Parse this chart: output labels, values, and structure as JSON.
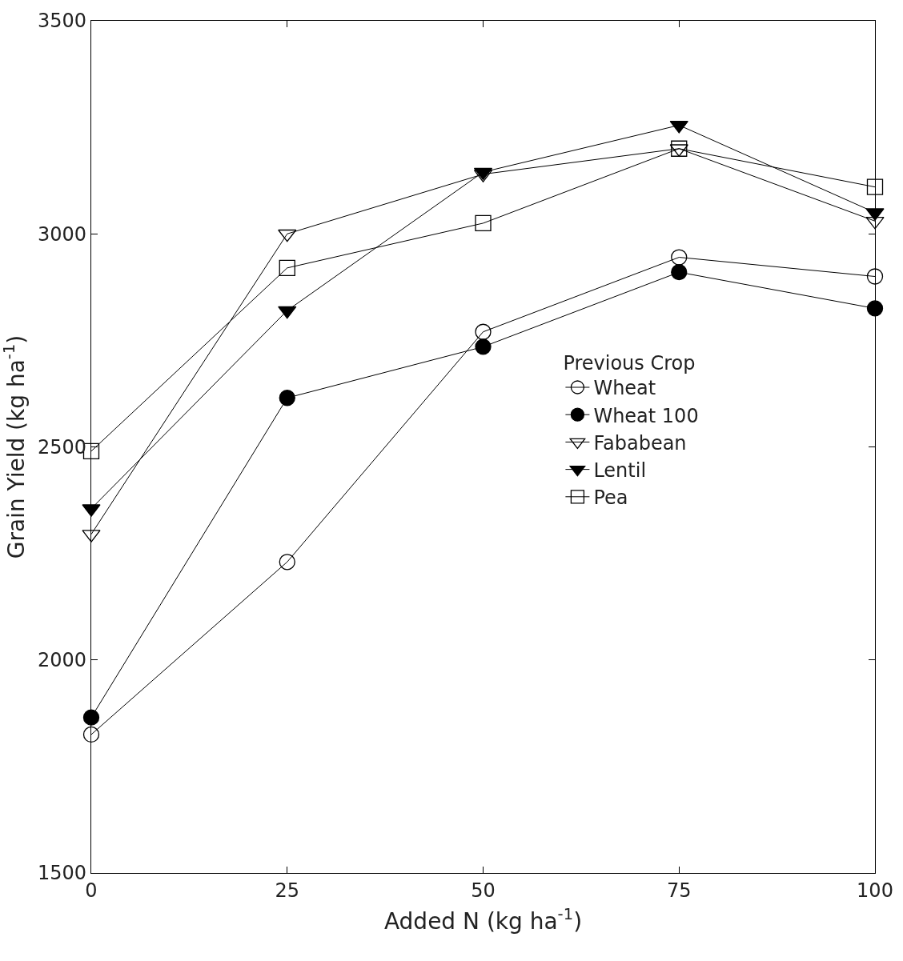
{
  "chart_data": {
    "type": "line",
    "xlabel": "Added N (kg ha$^{-1}$)",
    "ylabel": "Grain Yield (kg ha$^{-1}$)",
    "legend_title": "Previous Crop",
    "x": [
      0,
      25,
      50,
      75,
      100
    ],
    "series": [
      {
        "name": "Wheat",
        "color": "#000000",
        "marker": "circle-open",
        "values": [
          1825,
          2230,
          2770,
          2945,
          2900
        ]
      },
      {
        "name": "Wheat 100",
        "color": "#000000",
        "marker": "circle",
        "values": [
          1865,
          2615,
          2735,
          2910,
          2825
        ]
      },
      {
        "name": "Fababean",
        "color": "#000000",
        "marker": "triangle-down-open",
        "values": [
          2295,
          3000,
          3140,
          3200,
          3030
        ]
      },
      {
        "name": "Lentil",
        "color": "#000000",
        "marker": "triangle-down",
        "values": [
          2355,
          2820,
          3145,
          3255,
          3050
        ]
      },
      {
        "name": "Pea",
        "color": "#000000",
        "marker": "square-open",
        "values": [
          2490,
          2920,
          3025,
          3200,
          3110
        ]
      }
    ],
    "xlim": [
      0,
      100
    ],
    "xticks": [
      0,
      25,
      50,
      75,
      100
    ],
    "ylim": [
      1500,
      3500
    ],
    "yticks": [
      1500,
      2000,
      2500,
      3000,
      3500
    ],
    "legend": "right",
    "line_style": "solid"
  }
}
